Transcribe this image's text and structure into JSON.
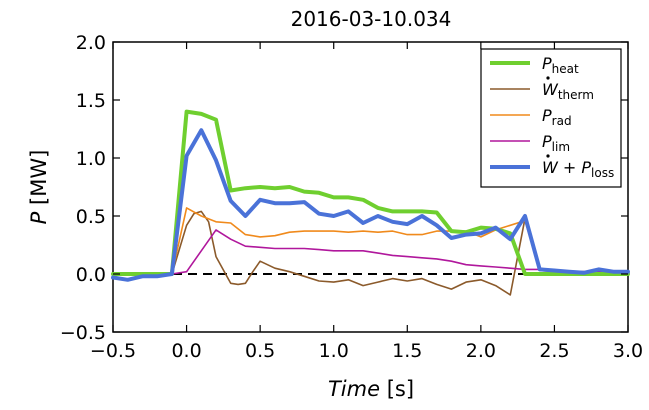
{
  "chart_data": {
    "type": "line",
    "title": "2016-03-10.034",
    "xlabel": {
      "italic": "Time",
      "unit": " [s]"
    },
    "ylabel": {
      "italic": "P",
      "unit": " [MW]"
    },
    "xlim": [
      -0.5,
      3.0
    ],
    "ylim": [
      -0.5,
      2.0
    ],
    "xticks": [
      "−0.5",
      "0.0",
      "0.5",
      "1.0",
      "1.5",
      "2.0",
      "2.5",
      "3.0"
    ],
    "yticks": [
      "−0.5",
      "0.0",
      "0.5",
      "1.0",
      "1.5",
      "2.0"
    ],
    "xtick_values": [
      -0.5,
      0.0,
      0.5,
      1.0,
      1.5,
      2.0,
      2.5,
      3.0
    ],
    "ytick_values": [
      -0.5,
      0.0,
      0.5,
      1.0,
      1.5,
      2.0
    ],
    "grid": false,
    "legend_position": "top-right",
    "reference_line": {
      "y": 0,
      "style": "dashed",
      "color": "#000000"
    },
    "series": [
      {
        "name": "P_heat",
        "label_main": "P",
        "label_sub": "heat",
        "label_dot": false,
        "color": "#6fcf2f",
        "width": 4,
        "x": [
          -0.5,
          -0.1,
          0.0,
          0.1,
          0.2,
          0.3,
          0.4,
          0.5,
          0.6,
          0.7,
          0.8,
          0.9,
          1.0,
          1.1,
          1.2,
          1.3,
          1.4,
          1.5,
          1.6,
          1.7,
          1.8,
          1.9,
          2.0,
          2.1,
          2.2,
          2.3,
          2.4,
          2.5,
          2.6,
          2.7,
          2.8,
          2.9,
          3.0
        ],
        "y": [
          0.0,
          0.0,
          1.4,
          1.38,
          1.33,
          0.72,
          0.74,
          0.75,
          0.74,
          0.75,
          0.71,
          0.7,
          0.66,
          0.66,
          0.64,
          0.57,
          0.54,
          0.54,
          0.54,
          0.53,
          0.37,
          0.36,
          0.4,
          0.39,
          0.35,
          0.0,
          0.0,
          0.0,
          0.0,
          0.0,
          0.0,
          0.0,
          0.0
        ]
      },
      {
        "name": "W_therm",
        "label_main": "W",
        "label_sub": "therm",
        "label_dot": true,
        "color": "#8b5a2b",
        "width": 1.6,
        "x": [
          -0.5,
          -0.1,
          0.0,
          0.05,
          0.1,
          0.15,
          0.2,
          0.3,
          0.35,
          0.4,
          0.45,
          0.5,
          0.6,
          0.7,
          0.8,
          0.9,
          1.0,
          1.1,
          1.2,
          1.3,
          1.4,
          1.5,
          1.6,
          1.7,
          1.8,
          1.9,
          2.0,
          2.1,
          2.2,
          2.3,
          2.4,
          2.5,
          2.6,
          2.7,
          2.8,
          2.9,
          3.0
        ],
        "y": [
          0.0,
          0.0,
          0.42,
          0.52,
          0.54,
          0.45,
          0.15,
          -0.08,
          -0.09,
          -0.08,
          0.02,
          0.11,
          0.05,
          0.02,
          -0.02,
          -0.06,
          -0.07,
          -0.05,
          -0.1,
          -0.07,
          -0.04,
          -0.06,
          -0.04,
          -0.09,
          -0.13,
          -0.07,
          -0.05,
          -0.1,
          -0.18,
          0.48,
          0.05,
          0.03,
          0.02,
          0.02,
          0.0,
          0.0,
          0.0
        ]
      },
      {
        "name": "P_rad",
        "label_main": "P",
        "label_sub": "rad",
        "label_dot": false,
        "color": "#f08a1c",
        "width": 1.6,
        "x": [
          -0.5,
          -0.1,
          0.0,
          0.1,
          0.2,
          0.3,
          0.4,
          0.5,
          0.6,
          0.7,
          0.8,
          0.9,
          1.0,
          1.1,
          1.2,
          1.3,
          1.4,
          1.5,
          1.6,
          1.7,
          1.8,
          1.9,
          2.0,
          2.1,
          2.2,
          2.3,
          2.4,
          2.5,
          2.6,
          2.7,
          2.8,
          2.9,
          3.0
        ],
        "y": [
          0.0,
          0.0,
          0.57,
          0.5,
          0.45,
          0.44,
          0.34,
          0.32,
          0.33,
          0.36,
          0.37,
          0.37,
          0.37,
          0.36,
          0.37,
          0.36,
          0.37,
          0.34,
          0.34,
          0.37,
          0.37,
          0.37,
          0.32,
          0.38,
          0.42,
          0.46,
          0.03,
          0.02,
          0.02,
          0.02,
          0.01,
          0.01,
          0.0
        ]
      },
      {
        "name": "P_lim",
        "label_main": "P",
        "label_sub": "lim",
        "label_dot": false,
        "color": "#b0179c",
        "width": 1.6,
        "x": [
          -0.5,
          -0.1,
          0.0,
          0.1,
          0.2,
          0.3,
          0.4,
          0.5,
          0.6,
          0.7,
          0.8,
          0.9,
          1.0,
          1.1,
          1.2,
          1.3,
          1.4,
          1.5,
          1.6,
          1.7,
          1.8,
          1.9,
          2.0,
          2.1,
          2.2,
          2.3,
          2.4,
          2.5,
          2.6,
          2.7,
          2.8,
          2.9,
          3.0
        ],
        "y": [
          0.0,
          0.0,
          0.02,
          0.2,
          0.38,
          0.3,
          0.24,
          0.23,
          0.22,
          0.22,
          0.22,
          0.21,
          0.2,
          0.2,
          0.2,
          0.18,
          0.16,
          0.15,
          0.14,
          0.13,
          0.11,
          0.08,
          0.07,
          0.06,
          0.05,
          0.04,
          0.04,
          0.03,
          0.02,
          0.02,
          0.02,
          0.02,
          0.02
        ]
      },
      {
        "name": "W + P_loss",
        "label_main": "W + P",
        "label_sub": "loss",
        "label_dot": true,
        "color": "#4a72d8",
        "width": 4,
        "x": [
          -0.5,
          -0.4,
          -0.3,
          -0.2,
          -0.1,
          0.0,
          0.1,
          0.2,
          0.3,
          0.4,
          0.5,
          0.6,
          0.7,
          0.8,
          0.9,
          1.0,
          1.1,
          1.2,
          1.3,
          1.4,
          1.5,
          1.6,
          1.7,
          1.8,
          1.9,
          2.0,
          2.1,
          2.2,
          2.3,
          2.4,
          2.5,
          2.6,
          2.7,
          2.8,
          2.9,
          3.0
        ],
        "y": [
          -0.03,
          -0.05,
          -0.02,
          -0.02,
          0.0,
          1.02,
          1.24,
          0.98,
          0.63,
          0.5,
          0.64,
          0.61,
          0.61,
          0.62,
          0.52,
          0.5,
          0.54,
          0.44,
          0.5,
          0.45,
          0.43,
          0.5,
          0.42,
          0.31,
          0.34,
          0.35,
          0.4,
          0.3,
          0.5,
          0.04,
          0.03,
          0.02,
          0.01,
          0.04,
          0.02,
          0.02
        ]
      }
    ]
  }
}
